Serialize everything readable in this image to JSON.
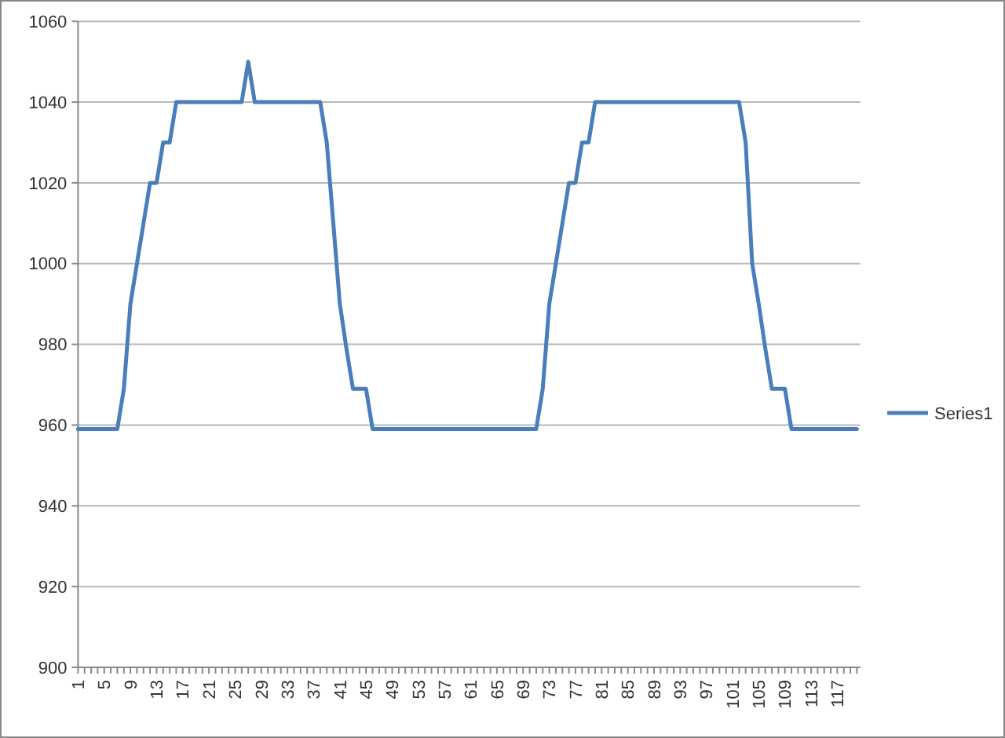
{
  "chart_data": {
    "type": "line",
    "categories": [
      "1",
      null,
      null,
      null,
      "5",
      null,
      null,
      null,
      "9",
      null,
      null,
      null,
      "13",
      null,
      null,
      null,
      "17",
      null,
      null,
      null,
      "21",
      null,
      null,
      null,
      "25",
      null,
      null,
      null,
      "29",
      null,
      null,
      null,
      "33",
      null,
      null,
      null,
      "37",
      null,
      null,
      null,
      "41",
      null,
      null,
      null,
      "45",
      null,
      null,
      null,
      "49",
      null,
      null,
      null,
      "53",
      null,
      null,
      null,
      "57",
      null,
      null,
      null,
      "61",
      null,
      null,
      null,
      "65",
      null,
      null,
      null,
      "69",
      null,
      null,
      null,
      "73",
      null,
      null,
      null,
      "77",
      null,
      null,
      null,
      "81",
      null,
      null,
      null,
      "85",
      null,
      null,
      null,
      "89",
      null,
      null,
      null,
      "93",
      null,
      null,
      null,
      "97",
      null,
      null,
      null,
      "101",
      null,
      null,
      null,
      "105",
      null,
      null,
      null,
      "109",
      null,
      null,
      null,
      "113",
      null,
      null,
      null,
      "117",
      null,
      null,
      null
    ],
    "series": [
      {
        "name": "Series1",
        "color": "#4a7ebb",
        "values": [
          959,
          959,
          959,
          959,
          959,
          959,
          959,
          969,
          990,
          1000,
          1010,
          1020,
          1020,
          1030,
          1030,
          1040,
          1040,
          1040,
          1040,
          1040,
          1040,
          1040,
          1040,
          1040,
          1040,
          1040,
          1050,
          1040,
          1040,
          1040,
          1040,
          1040,
          1040,
          1040,
          1040,
          1040,
          1040,
          1040,
          1030,
          1010,
          990,
          979,
          969,
          969,
          969,
          959,
          959,
          959,
          959,
          959,
          959,
          959,
          959,
          959,
          959,
          959,
          959,
          959,
          959,
          959,
          959,
          959,
          959,
          959,
          959,
          959,
          959,
          959,
          959,
          959,
          959,
          969,
          990,
          1000,
          1010,
          1020,
          1020,
          1030,
          1030,
          1040,
          1040,
          1040,
          1040,
          1040,
          1040,
          1040,
          1040,
          1040,
          1040,
          1040,
          1040,
          1040,
          1040,
          1040,
          1040,
          1040,
          1040,
          1040,
          1040,
          1040,
          1040,
          1040,
          1030,
          1000,
          990,
          979,
          969,
          969,
          969,
          959,
          959,
          959,
          959,
          959,
          959,
          959,
          959,
          959,
          959,
          959
        ]
      }
    ],
    "ylim": [
      900,
      1060
    ],
    "yticks": [
      900,
      920,
      940,
      960,
      980,
      1000,
      1020,
      1040,
      1060
    ],
    "grid": "y",
    "legend": "right",
    "marker": "none",
    "line_style": "solid"
  }
}
